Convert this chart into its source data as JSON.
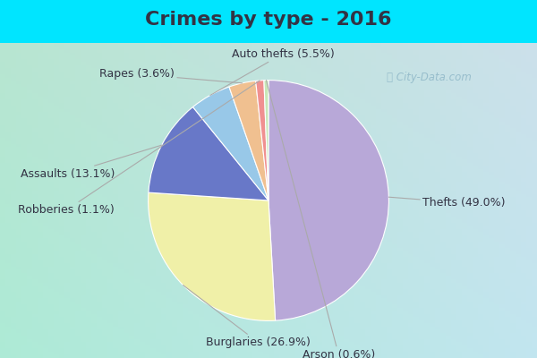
{
  "title": "Crimes by type - 2016",
  "labels": [
    "Thefts",
    "Burglaries",
    "Assaults",
    "Auto thefts",
    "Rapes",
    "Robberies",
    "Arson"
  ],
  "percentages": [
    49.0,
    26.9,
    13.1,
    5.5,
    3.6,
    1.1,
    0.6
  ],
  "colors": [
    "#b8a8d8",
    "#f0f0a8",
    "#6878c8",
    "#98c8e8",
    "#f0c090",
    "#f09090",
    "#c8e8b8"
  ],
  "title_fontsize": 16,
  "label_fontsize": 9,
  "startangle": 90,
  "title_color": "#333344",
  "label_color": "#333344",
  "border_color": "#00e5ff",
  "bg_color_top_left": "#b8e8d0",
  "bg_color_bottom_right": "#d8e8f0",
  "label_offsets": {
    "Thefts": [
      1.28,
      -0.02,
      "left"
    ],
    "Burglaries": [
      -0.52,
      -1.18,
      "left"
    ],
    "Assaults": [
      -1.28,
      0.22,
      "right"
    ],
    "Auto thefts": [
      0.12,
      1.22,
      "center"
    ],
    "Rapes": [
      -0.78,
      1.05,
      "right"
    ],
    "Robberies": [
      -1.28,
      -0.08,
      "right"
    ],
    "Arson": [
      0.28,
      -1.28,
      "left"
    ]
  },
  "watermark": "City-Data.com"
}
